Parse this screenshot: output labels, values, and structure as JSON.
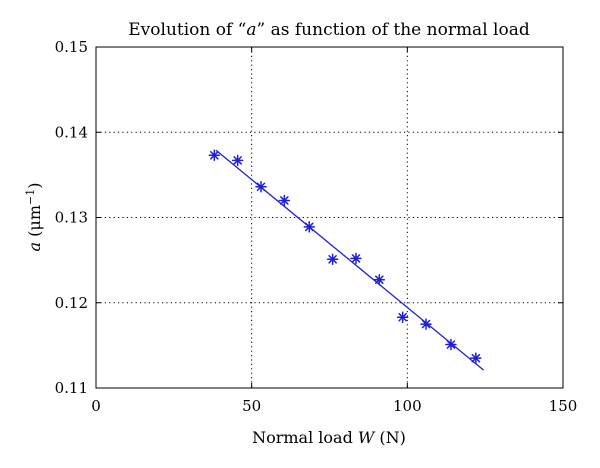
{
  "chart_data": {
    "type": "scatter",
    "title": "Evolution of “a” as function of the normal load",
    "title_parts": {
      "before": "Evolution of “",
      "var": "a",
      "after": "” as function of the normal load"
    },
    "xlabel": "Normal load W (N)",
    "xlabel_parts": {
      "before": "Normal load ",
      "var": "W",
      "after": " (N)"
    },
    "ylabel": "a (μm⁻¹)",
    "ylabel_parts": {
      "var": "a",
      "open": " (",
      "unit": "μm",
      "exp": "−1",
      "close": ")"
    },
    "xlim": [
      0,
      150
    ],
    "ylim": [
      0.11,
      0.15
    ],
    "xticks": [
      0,
      50,
      100,
      150
    ],
    "xtick_labels": [
      "0",
      "50",
      "100",
      "150"
    ],
    "yticks": [
      0.11,
      0.12,
      0.13,
      0.14,
      0.15
    ],
    "ytick_labels": [
      "0.11",
      "0.12",
      "0.13",
      "0.14",
      "0.15"
    ],
    "grid": true,
    "grid_style": "dotted",
    "color": "#1f1fd6",
    "series": [
      {
        "marker": "asterisk",
        "x": [
          38,
          45.5,
          53,
          60.5,
          68.5,
          76,
          83.5,
          91,
          98.5,
          106,
          114,
          122
        ],
        "y": [
          0.1373,
          0.1367,
          0.1336,
          0.132,
          0.1289,
          0.1251,
          0.1252,
          0.1227,
          0.1183,
          0.1175,
          0.1151,
          0.1135
        ]
      },
      {
        "type": "line",
        "x": [
          38.5,
          124.5
        ],
        "y": [
          0.1379,
          0.1121
        ]
      }
    ]
  }
}
